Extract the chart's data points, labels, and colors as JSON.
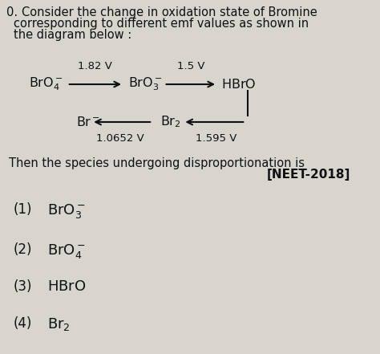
{
  "question_number": "0.",
  "question_text_line1": "Consider the change in oxidation state of Bromine",
  "question_text_line2": "corresponding to different emf values as shown in",
  "question_text_line3": "the diagram below :",
  "emf_top1": "1.82 V",
  "emf_top2": "1.5 V",
  "emf_bot1": "1.0652 V",
  "emf_bot2": "1.595 V",
  "then_text": "Then the species undergoing disproportionation is",
  "tag": "[NEET-2018]",
  "bg_color": "#d8d4ce",
  "text_color": "#111111",
  "fontsize_q": 10.5,
  "fontsize_chem": 11.5,
  "fontsize_emf": 9.5,
  "fontsize_options": 12
}
